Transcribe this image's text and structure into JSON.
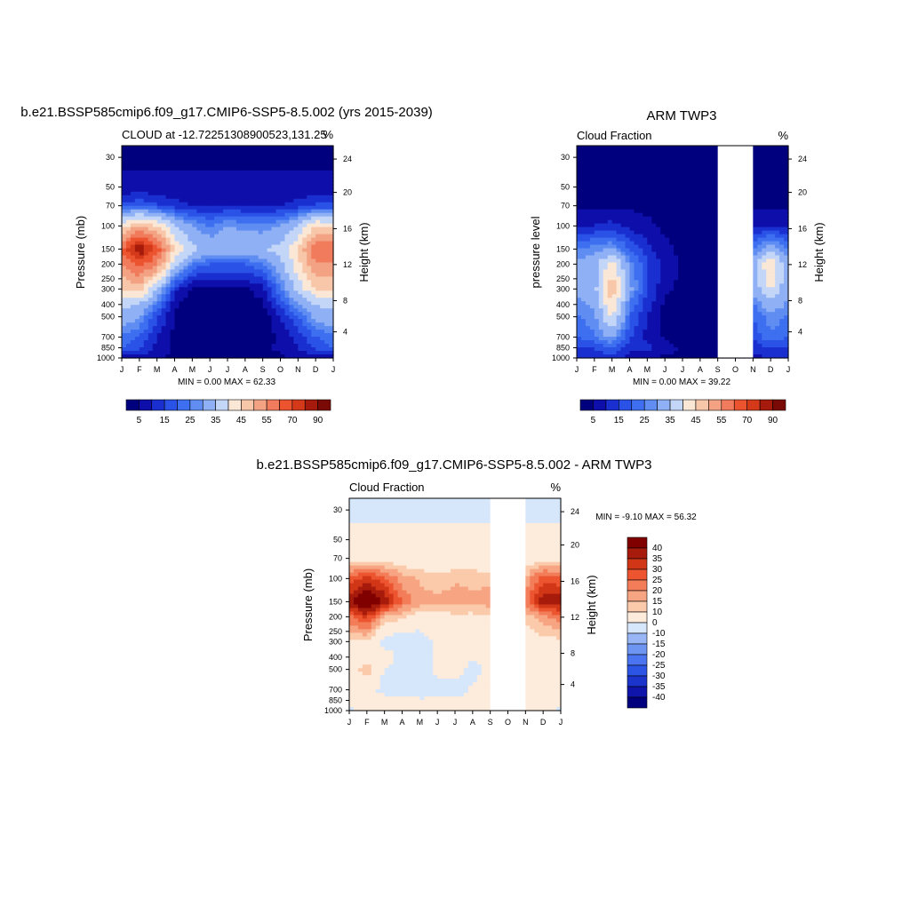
{
  "chart_data": [
    {
      "type": "heatmap",
      "title": "b.e21.BSSP585cmip6.f09_g17.CMIP6-SSP5-8.5.002 (yrs 2015-2039)",
      "left_label": "CLOUD at -12.72251308900523,131.25",
      "right_label": "%",
      "ylabel": "Pressure (mb)",
      "y2label": "Height (km)",
      "minmax": "MIN =   0.00 MAX =  62.33",
      "x_ticks": [
        "J",
        "F",
        "M",
        "A",
        "M",
        "J",
        "J",
        "A",
        "S",
        "O",
        "N",
        "D",
        "J"
      ],
      "y_ticks": [
        "30",
        "50",
        "70",
        "100",
        "150",
        "200",
        "250",
        "300",
        "400",
        "500",
        "700",
        "850",
        "1000"
      ],
      "y2_ticks": [
        "24",
        "20",
        "16",
        "12",
        "8",
        "4"
      ],
      "colorbar_labels": [
        "5",
        "15",
        "25",
        "35",
        "45",
        "55",
        "70",
        "90"
      ],
      "missing_months": [],
      "approx_values": {
        "pressure_mb": [
          30,
          50,
          70,
          100,
          150,
          200,
          300,
          400,
          500,
          700,
          850,
          1000
        ],
        "z": [
          [
            2,
            2,
            2,
            2,
            2,
            2,
            2,
            2,
            2,
            2,
            2,
            2,
            2
          ],
          [
            3,
            3,
            3,
            3,
            3,
            3,
            3,
            3,
            3,
            3,
            3,
            3,
            3
          ],
          [
            8,
            10,
            8,
            6,
            5,
            5,
            5,
            5,
            5,
            5,
            6,
            8,
            8
          ],
          [
            28,
            35,
            30,
            20,
            15,
            12,
            15,
            14,
            13,
            15,
            20,
            30,
            28
          ],
          [
            45,
            60,
            48,
            30,
            22,
            18,
            20,
            18,
            20,
            22,
            30,
            45,
            45
          ],
          [
            40,
            48,
            40,
            22,
            12,
            10,
            10,
            10,
            12,
            18,
            28,
            40,
            40
          ],
          [
            30,
            32,
            20,
            6,
            2,
            2,
            2,
            2,
            4,
            12,
            22,
            30,
            30
          ],
          [
            22,
            20,
            12,
            3,
            1,
            1,
            1,
            1,
            2,
            8,
            15,
            20,
            22
          ],
          [
            18,
            15,
            8,
            2,
            1,
            1,
            1,
            1,
            1,
            5,
            10,
            16,
            18
          ],
          [
            12,
            10,
            5,
            2,
            1,
            1,
            1,
            1,
            1,
            3,
            6,
            10,
            12
          ],
          [
            10,
            8,
            4,
            2,
            2,
            2,
            2,
            2,
            2,
            3,
            5,
            8,
            10
          ],
          [
            4,
            4,
            3,
            2,
            2,
            2,
            2,
            2,
            2,
            2,
            3,
            4,
            4
          ]
        ]
      }
    },
    {
      "type": "heatmap",
      "title": "ARM TWP3",
      "left_label": "Cloud Fraction",
      "right_label": "%",
      "ylabel": "pressure level",
      "y2label": "Height (km)",
      "minmax": "MIN =   0.00 MAX =  39.22",
      "x_ticks": [
        "J",
        "F",
        "M",
        "A",
        "M",
        "J",
        "J",
        "A",
        "S",
        "O",
        "N",
        "D",
        "J"
      ],
      "y_ticks": [
        "30",
        "50",
        "70",
        "100",
        "150",
        "200",
        "250",
        "300",
        "400",
        "500",
        "700",
        "850",
        "1000"
      ],
      "y2_ticks": [
        "24",
        "20",
        "16",
        "12",
        "8",
        "4"
      ],
      "colorbar_labels": [
        "5",
        "15",
        "25",
        "35",
        "45",
        "55",
        "70",
        "90"
      ],
      "missing_months": [
        "S",
        "O",
        "N"
      ],
      "approx_values": {
        "pressure_mb": [
          30,
          50,
          70,
          100,
          150,
          200,
          300,
          400,
          500,
          700,
          850,
          1000
        ],
        "z": [
          [
            1,
            1,
            1,
            1,
            1,
            1,
            1,
            1,
            1,
            1,
            1,
            1,
            1
          ],
          [
            1,
            1,
            1,
            1,
            1,
            1,
            1,
            1,
            1,
            1,
            1,
            1,
            1
          ],
          [
            2,
            2,
            2,
            2,
            2,
            2,
            2,
            2,
            2,
            2,
            2,
            2,
            2
          ],
          [
            4,
            5,
            6,
            4,
            3,
            2,
            2,
            2,
            2,
            2,
            4,
            5,
            4
          ],
          [
            12,
            14,
            15,
            10,
            6,
            3,
            2,
            2,
            2,
            2,
            12,
            18,
            12
          ],
          [
            16,
            18,
            28,
            14,
            8,
            4,
            2,
            2,
            2,
            2,
            18,
            30,
            16
          ],
          [
            16,
            18,
            34,
            16,
            8,
            3,
            2,
            2,
            2,
            2,
            16,
            26,
            16
          ],
          [
            14,
            16,
            30,
            12,
            6,
            2,
            1,
            1,
            1,
            1,
            12,
            18,
            14
          ],
          [
            12,
            14,
            26,
            10,
            5,
            2,
            1,
            1,
            1,
            1,
            10,
            14,
            12
          ],
          [
            10,
            12,
            16,
            8,
            4,
            2,
            1,
            1,
            1,
            1,
            8,
            12,
            10
          ],
          [
            7,
            8,
            10,
            6,
            6,
            4,
            2,
            2,
            2,
            2,
            6,
            8,
            7
          ],
          [
            5,
            5,
            6,
            4,
            3,
            2,
            2,
            2,
            2,
            2,
            4,
            5,
            5
          ]
        ]
      }
    },
    {
      "type": "heatmap",
      "title": "b.e21.BSSP585cmip6.f09_g17.CMIP6-SSP5-8.5.002 - ARM TWP3",
      "left_label": "Cloud Fraction",
      "right_label": "%",
      "ylabel": "Pressure (mb)",
      "y2label": "Height (km)",
      "minmax": "MIN =  -9.10 MAX =  56.32",
      "x_ticks": [
        "J",
        "F",
        "M",
        "A",
        "M",
        "J",
        "J",
        "A",
        "S",
        "O",
        "N",
        "D",
        "J"
      ],
      "y_ticks": [
        "30",
        "50",
        "70",
        "100",
        "150",
        "200",
        "250",
        "300",
        "400",
        "500",
        "700",
        "850",
        "1000"
      ],
      "y2_ticks": [
        "24",
        "20",
        "16",
        "12",
        "8",
        "4"
      ],
      "colorbar_labels": [
        "40",
        "35",
        "30",
        "25",
        "20",
        "15",
        "10",
        "0",
        "-10",
        "-15",
        "-20",
        "-25",
        "-30",
        "-35",
        "-40"
      ],
      "missing_months": [
        "S",
        "O",
        "N"
      ],
      "approx_values": {
        "pressure_mb": [
          30,
          50,
          70,
          100,
          150,
          200,
          300,
          400,
          500,
          700,
          850,
          1000
        ],
        "z": [
          [
            -2,
            -2,
            -2,
            -2,
            -2,
            -2,
            -2,
            -2,
            -2,
            -2,
            -2,
            -2,
            -2
          ],
          [
            3,
            3,
            3,
            3,
            3,
            3,
            3,
            3,
            3,
            3,
            3,
            3,
            3
          ],
          [
            6,
            8,
            6,
            5,
            4,
            4,
            4,
            4,
            4,
            4,
            5,
            8,
            6
          ],
          [
            26,
            32,
            26,
            18,
            14,
            12,
            14,
            14,
            13,
            13,
            16,
            28,
            26
          ],
          [
            38,
            50,
            40,
            24,
            18,
            16,
            18,
            16,
            18,
            18,
            22,
            40,
            38
          ],
          [
            24,
            32,
            14,
            12,
            6,
            7,
            8,
            8,
            10,
            10,
            12,
            18,
            24
          ],
          [
            8,
            10,
            -4,
            -6,
            -5,
            2,
            2,
            2,
            4,
            4,
            6,
            8,
            8
          ],
          [
            6,
            5,
            6,
            -3,
            -5,
            2,
            3,
            1,
            2,
            2,
            4,
            5,
            6
          ],
          [
            4,
            14,
            -1,
            -5,
            -4,
            2,
            2,
            -2,
            2,
            2,
            2,
            4,
            4
          ],
          [
            2,
            2,
            -2,
            -5,
            -4,
            -3,
            -3,
            1,
            2,
            2,
            2,
            2,
            2
          ],
          [
            3,
            1,
            2,
            2,
            1,
            1,
            1,
            1,
            1,
            1,
            1,
            2,
            3
          ],
          [
            -1,
            1,
            1,
            1,
            1,
            1,
            1,
            1,
            1,
            1,
            1,
            2,
            -1
          ]
        ]
      }
    }
  ],
  "colors": {
    "cloud_scale": [
      "#00007f",
      "#0e0eaa",
      "#1a2fd0",
      "#2a52e6",
      "#3d6ff0",
      "#5f8df2",
      "#8fb0f4",
      "#c3d6f8",
      "#fbe7d6",
      "#f8c6a8",
      "#f3a283",
      "#f07c5d",
      "#ec5430",
      "#d43a19",
      "#a61b0b",
      "#7a0a05"
    ],
    "diff_scale": [
      "#00007f",
      "#0f15aa",
      "#1a34cc",
      "#2c55e6",
      "#4a74f0",
      "#6e95f2",
      "#98b6f5",
      "#d6e6fb",
      "#fdebdc",
      "#fbcaaa",
      "#f7a482",
      "#f27d58",
      "#ec5530",
      "#d13617",
      "#a61b0b",
      "#800000"
    ],
    "missing": "#ffffff"
  }
}
